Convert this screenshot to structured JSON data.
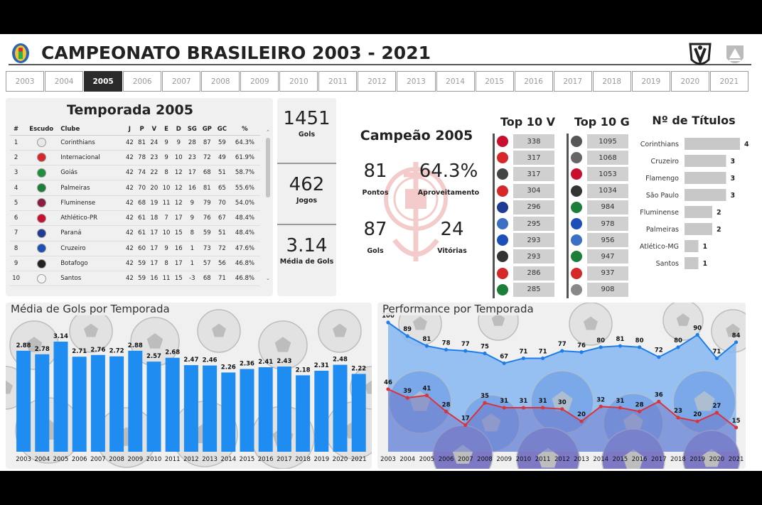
{
  "header": {
    "title": "CAMPEONATO BRASILEIRO 2003 - 2021"
  },
  "years": [
    "2003",
    "2004",
    "2005",
    "2006",
    "2007",
    "2008",
    "2009",
    "2010",
    "2011",
    "2012",
    "2013",
    "2014",
    "2015",
    "2016",
    "2017",
    "2018",
    "2019",
    "2020",
    "2021"
  ],
  "selected_year": "2005",
  "standings": {
    "title": "Temporada 2005",
    "columns": [
      "#",
      "Escudo",
      "Clube",
      "J",
      "P",
      "V",
      "E",
      "D",
      "SG",
      "GP",
      "GC",
      "%"
    ],
    "rows": [
      {
        "pos": "1",
        "club": "Corinthians",
        "color": "#e8e8e8",
        "j": "42",
        "p": "81",
        "v": "24",
        "e": "9",
        "d": "9",
        "sg": "28",
        "gp": "87",
        "gc": "59",
        "pct": "64.3%"
      },
      {
        "pos": "2",
        "club": "Internacional",
        "color": "#d62828",
        "j": "42",
        "p": "78",
        "v": "23",
        "e": "9",
        "d": "10",
        "sg": "23",
        "gp": "72",
        "gc": "49",
        "pct": "61.9%"
      },
      {
        "pos": "3",
        "club": "Goiás",
        "color": "#1e8f3c",
        "j": "42",
        "p": "74",
        "v": "22",
        "e": "8",
        "d": "12",
        "sg": "17",
        "gp": "68",
        "gc": "51",
        "pct": "58.7%"
      },
      {
        "pos": "4",
        "club": "Palmeiras",
        "color": "#1b7f3a",
        "j": "42",
        "p": "70",
        "v": "20",
        "e": "10",
        "d": "12",
        "sg": "16",
        "gp": "81",
        "gc": "65",
        "pct": "55.6%"
      },
      {
        "pos": "5",
        "club": "Fluminense",
        "color": "#8b1e3f",
        "j": "42",
        "p": "68",
        "v": "19",
        "e": "11",
        "d": "12",
        "sg": "9",
        "gp": "79",
        "gc": "70",
        "pct": "54.0%"
      },
      {
        "pos": "6",
        "club": "Athlético-PR",
        "color": "#c8102e",
        "j": "42",
        "p": "61",
        "v": "18",
        "e": "7",
        "d": "17",
        "sg": "9",
        "gp": "76",
        "gc": "67",
        "pct": "48.4%"
      },
      {
        "pos": "7",
        "club": "Paraná",
        "color": "#1f3a93",
        "j": "42",
        "p": "61",
        "v": "17",
        "e": "10",
        "d": "15",
        "sg": "8",
        "gp": "59",
        "gc": "51",
        "pct": "48.4%"
      },
      {
        "pos": "8",
        "club": "Cruzeiro",
        "color": "#1d4fb8",
        "j": "42",
        "p": "60",
        "v": "17",
        "e": "9",
        "d": "16",
        "sg": "1",
        "gp": "73",
        "gc": "72",
        "pct": "47.6%"
      },
      {
        "pos": "9",
        "club": "Botafogo",
        "color": "#222222",
        "j": "42",
        "p": "59",
        "v": "17",
        "e": "8",
        "d": "17",
        "sg": "1",
        "gp": "57",
        "gc": "56",
        "pct": "46.8%"
      },
      {
        "pos": "10",
        "club": "Santos",
        "color": "#f4f4f4",
        "j": "42",
        "p": "59",
        "v": "16",
        "e": "11",
        "d": "15",
        "sg": "-3",
        "gp": "68",
        "gc": "71",
        "pct": "46.8%"
      }
    ]
  },
  "kpis": [
    {
      "value": "1451",
      "label": "Gols"
    },
    {
      "value": "462",
      "label": "Jogos"
    },
    {
      "value": "3.14",
      "label": "Média de Gols"
    }
  ],
  "champion": {
    "title": "Campeão 2005",
    "pontos": {
      "value": "81",
      "label": "Pontos"
    },
    "aproveitamento": {
      "value": "64.3%",
      "label": "Aproveitamento"
    },
    "gols": {
      "value": "87",
      "label": "Gols"
    },
    "vitorias": {
      "value": "24",
      "label": "Vitórias"
    }
  },
  "top10v": {
    "title": "Top 10 V",
    "items": [
      {
        "value": "338",
        "color": "#c8102e"
      },
      {
        "value": "317",
        "color": "#d62828"
      },
      {
        "value": "317",
        "color": "#444444"
      },
      {
        "value": "304",
        "color": "#d62828"
      },
      {
        "value": "296",
        "color": "#1f3a93"
      },
      {
        "value": "295",
        "color": "#3a6fc4"
      },
      {
        "value": "293",
        "color": "#1d4fb8"
      },
      {
        "value": "293",
        "color": "#333333"
      },
      {
        "value": "286",
        "color": "#d62828"
      },
      {
        "value": "285",
        "color": "#1b7f3a"
      }
    ]
  },
  "top10g": {
    "title": "Top 10 G",
    "items": [
      {
        "value": "1095",
        "color": "#555555"
      },
      {
        "value": "1068",
        "color": "#666666"
      },
      {
        "value": "1053",
        "color": "#c8102e"
      },
      {
        "value": "1034",
        "color": "#333333"
      },
      {
        "value": "984",
        "color": "#1b7f3a"
      },
      {
        "value": "978",
        "color": "#1d4fb8"
      },
      {
        "value": "956",
        "color": "#3a6fc4"
      },
      {
        "value": "947",
        "color": "#1b7f3a"
      },
      {
        "value": "937",
        "color": "#d62828"
      },
      {
        "value": "908",
        "color": "#888888"
      }
    ]
  },
  "chart_data": [
    {
      "type": "bar",
      "title": "Nº de Títulos",
      "categories": [
        "Corinthians",
        "Cruzeiro",
        "Flamengo",
        "São Paulo",
        "Fluminense",
        "Palmeiras",
        "Atlético-MG",
        "Santos"
      ],
      "values": [
        4,
        3,
        3,
        3,
        2,
        2,
        1,
        1
      ],
      "orientation": "horizontal",
      "bar_color": "#c8c8c8"
    },
    {
      "type": "bar",
      "title": "Média de Gols por Temporada",
      "categories": [
        "2003",
        "2004",
        "2005",
        "2006",
        "2007",
        "2008",
        "2009",
        "2010",
        "2011",
        "2012",
        "2013",
        "2014",
        "2015",
        "2016",
        "2017",
        "2018",
        "2019",
        "2020",
        "2021"
      ],
      "values": [
        2.88,
        2.78,
        3.14,
        2.71,
        2.76,
        2.72,
        2.88,
        2.57,
        2.68,
        2.47,
        2.46,
        2.26,
        2.36,
        2.41,
        2.43,
        2.18,
        2.31,
        2.48,
        2.22
      ],
      "bar_color": "#1e8cf0"
    },
    {
      "type": "line",
      "title": "Performance por Temporada",
      "x": [
        "2003",
        "2004",
        "2005",
        "2006",
        "2007",
        "2008",
        "2009",
        "2010",
        "2011",
        "2012",
        "2013",
        "2014",
        "2015",
        "2016",
        "2017",
        "2018",
        "2019",
        "2020",
        "2021"
      ],
      "series": [
        {
          "values": [
            100,
            89,
            81,
            78,
            77,
            75,
            67,
            71,
            71,
            77,
            76,
            80,
            81,
            80,
            72,
            80,
            90,
            71,
            84
          ],
          "color": "#1e7ee8"
        },
        {
          "values": [
            46,
            39,
            41,
            28,
            17,
            35,
            31,
            31,
            31,
            30,
            20,
            32,
            31,
            28,
            36,
            23,
            20,
            27,
            15
          ],
          "color": "#d9343b"
        }
      ]
    }
  ]
}
